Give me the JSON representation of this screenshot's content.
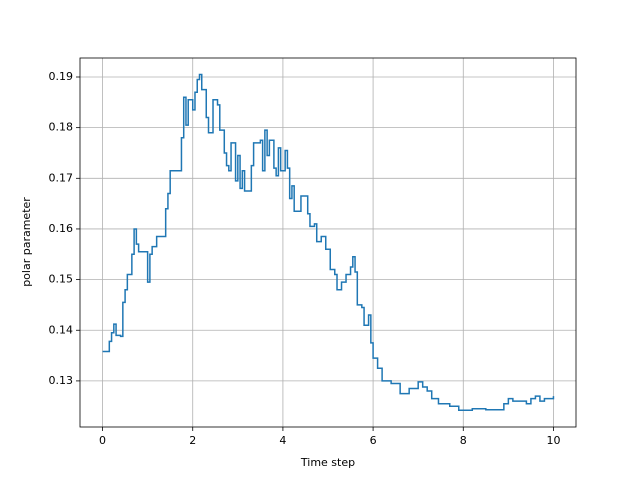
{
  "chart_data": {
    "type": "line",
    "step": "post",
    "x_label": "Time step",
    "y_label": "polar parameter",
    "x": [
      0,
      0.1,
      0.15,
      0.2,
      0.25,
      0.3,
      0.4,
      0.45,
      0.5,
      0.55,
      0.6,
      0.65,
      0.7,
      0.75,
      0.8,
      0.9,
      1.0,
      1.05,
      1.1,
      1.2,
      1.4,
      1.45,
      1.5,
      1.7,
      1.75,
      1.8,
      1.85,
      1.9,
      2.0,
      2.05,
      2.1,
      2.15,
      2.2,
      2.3,
      2.35,
      2.45,
      2.55,
      2.6,
      2.7,
      2.75,
      2.8,
      2.85,
      2.95,
      3.0,
      3.05,
      3.1,
      3.15,
      3.3,
      3.35,
      3.5,
      3.55,
      3.6,
      3.65,
      3.7,
      3.8,
      3.85,
      3.9,
      3.95,
      4.05,
      4.1,
      4.15,
      4.2,
      4.25,
      4.4,
      4.55,
      4.6,
      4.7,
      4.75,
      4.85,
      4.95,
      5.05,
      5.15,
      5.2,
      5.3,
      5.4,
      5.5,
      5.55,
      5.6,
      5.65,
      5.75,
      5.8,
      5.9,
      5.95,
      6.0,
      6.1,
      6.2,
      6.4,
      6.5,
      6.6,
      6.8,
      6.9,
      7.0,
      7.1,
      7.2,
      7.3,
      7.45,
      7.6,
      7.7,
      7.9,
      8.2,
      8.5,
      8.9,
      9.0,
      9.1,
      9.3,
      9.4,
      9.5,
      9.6,
      9.7,
      9.8,
      10.0
    ],
    "series": [
      {
        "color": "#1f77b4",
        "values": [
          0.1358,
          0.1358,
          0.1378,
          0.1395,
          0.1412,
          0.139,
          0.1388,
          0.1455,
          0.148,
          0.151,
          0.151,
          0.155,
          0.16,
          0.157,
          0.1555,
          0.1555,
          0.1495,
          0.155,
          0.1565,
          0.1585,
          0.164,
          0.167,
          0.1715,
          0.1715,
          0.178,
          0.186,
          0.1805,
          0.1855,
          0.1835,
          0.187,
          0.1895,
          0.1905,
          0.1875,
          0.182,
          0.179,
          0.1855,
          0.1845,
          0.1795,
          0.175,
          0.1725,
          0.1715,
          0.177,
          0.1695,
          0.1745,
          0.168,
          0.1715,
          0.1675,
          0.1725,
          0.177,
          0.1775,
          0.1715,
          0.1795,
          0.1745,
          0.1775,
          0.172,
          0.1705,
          0.176,
          0.1715,
          0.1755,
          0.172,
          0.166,
          0.1685,
          0.1635,
          0.1665,
          0.163,
          0.1605,
          0.161,
          0.1575,
          0.1585,
          0.156,
          0.152,
          0.151,
          0.148,
          0.1495,
          0.151,
          0.1525,
          0.1545,
          0.1515,
          0.145,
          0.1445,
          0.141,
          0.143,
          0.1375,
          0.1345,
          0.1325,
          0.13,
          0.1295,
          0.1295,
          0.1275,
          0.1285,
          0.1285,
          0.1298,
          0.1288,
          0.128,
          0.1265,
          0.1255,
          0.1255,
          0.125,
          0.1242,
          0.1245,
          0.1243,
          0.1255,
          0.1265,
          0.126,
          0.126,
          0.1255,
          0.1265,
          0.127,
          0.126,
          0.1265,
          0.127
        ]
      }
    ],
    "xlim": [
      -0.5,
      10.5
    ],
    "xticks": [
      0,
      2,
      4,
      6,
      8,
      10
    ],
    "ylim": [
      0.1209,
      0.19375
    ],
    "yticks": [
      0.13,
      0.14,
      0.15,
      0.16,
      0.17,
      0.18,
      0.19
    ],
    "grid": true
  }
}
